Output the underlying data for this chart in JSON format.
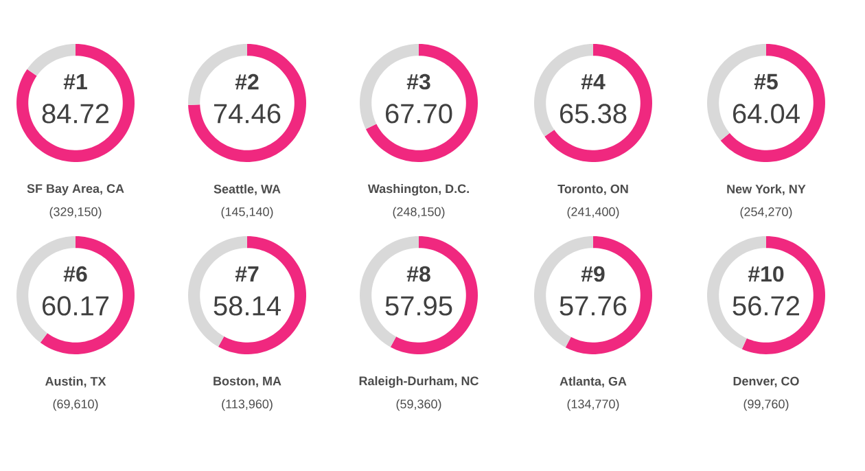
{
  "chart_data": [
    {
      "type": "donut",
      "title": "#1",
      "categories": [
        null,
        null
      ],
      "values": [
        84.72,
        15.28
      ],
      "colors": [
        "#f0287f",
        "#d9d9d9"
      ],
      "value_labels": [
        "84.72",
        null
      ],
      "xlabel": "SF Bay Area, CA",
      "annotations": [
        "(329,150)"
      ]
    },
    {
      "type": "donut",
      "title": "#2",
      "categories": [
        null,
        null
      ],
      "values": [
        74.46,
        25.54
      ],
      "colors": [
        "#f0287f",
        "#d9d9d9"
      ],
      "value_labels": [
        "74.46",
        null
      ],
      "xlabel": "Seattle, WA",
      "annotations": [
        "(145,140)"
      ]
    },
    {
      "type": "donut",
      "title": "#3",
      "categories": [
        null,
        null
      ],
      "values": [
        67.7,
        32.3
      ],
      "colors": [
        "#f0287f",
        "#d9d9d9"
      ],
      "value_labels": [
        "67.70",
        null
      ],
      "xlabel": "Washington, D.C.",
      "annotations": [
        "(248,150)"
      ]
    },
    {
      "type": "donut",
      "title": "#4",
      "categories": [
        null,
        null
      ],
      "values": [
        65.38,
        34.62
      ],
      "colors": [
        "#f0287f",
        "#d9d9d9"
      ],
      "value_labels": [
        "65.38",
        null
      ],
      "xlabel": "Toronto, ON",
      "annotations": [
        "(241,400)"
      ]
    },
    {
      "type": "donut",
      "title": "#5",
      "categories": [
        null,
        null
      ],
      "values": [
        64.04,
        35.96
      ],
      "colors": [
        "#f0287f",
        "#d9d9d9"
      ],
      "value_labels": [
        "64.04",
        null
      ],
      "xlabel": "New York, NY",
      "annotations": [
        "(254,270)"
      ]
    },
    {
      "type": "donut",
      "title": "#6",
      "categories": [
        null,
        null
      ],
      "values": [
        60.17,
        39.83
      ],
      "colors": [
        "#f0287f",
        "#d9d9d9"
      ],
      "value_labels": [
        "60.17",
        null
      ],
      "xlabel": "Austin, TX",
      "annotations": [
        "(69,610)"
      ]
    },
    {
      "type": "donut",
      "title": "#7",
      "categories": [
        null,
        null
      ],
      "values": [
        58.14,
        41.86
      ],
      "colors": [
        "#f0287f",
        "#d9d9d9"
      ],
      "value_labels": [
        "58.14",
        null
      ],
      "xlabel": "Boston, MA",
      "annotations": [
        "(113,960)"
      ]
    },
    {
      "type": "donut",
      "title": "#8",
      "categories": [
        null,
        null
      ],
      "values": [
        57.95,
        42.05
      ],
      "colors": [
        "#f0287f",
        "#d9d9d9"
      ],
      "value_labels": [
        "57.95",
        null
      ],
      "xlabel": "Raleigh-Durham, NC",
      "annotations": [
        "(59,360)"
      ]
    },
    {
      "type": "donut",
      "title": "#9",
      "categories": [
        null,
        null
      ],
      "values": [
        57.76,
        42.24
      ],
      "colors": [
        "#f0287f",
        "#d9d9d9"
      ],
      "value_labels": [
        "57.76",
        null
      ],
      "xlabel": "Atlanta, GA",
      "annotations": [
        "(134,770)"
      ]
    },
    {
      "type": "donut",
      "title": "#10",
      "categories": [
        null,
        null
      ],
      "values": [
        56.72,
        43.28
      ],
      "colors": [
        "#f0287f",
        "#d9d9d9"
      ],
      "value_labels": [
        "56.72",
        null
      ],
      "xlabel": "Denver, CO",
      "annotations": [
        "(99,760)"
      ]
    }
  ]
}
